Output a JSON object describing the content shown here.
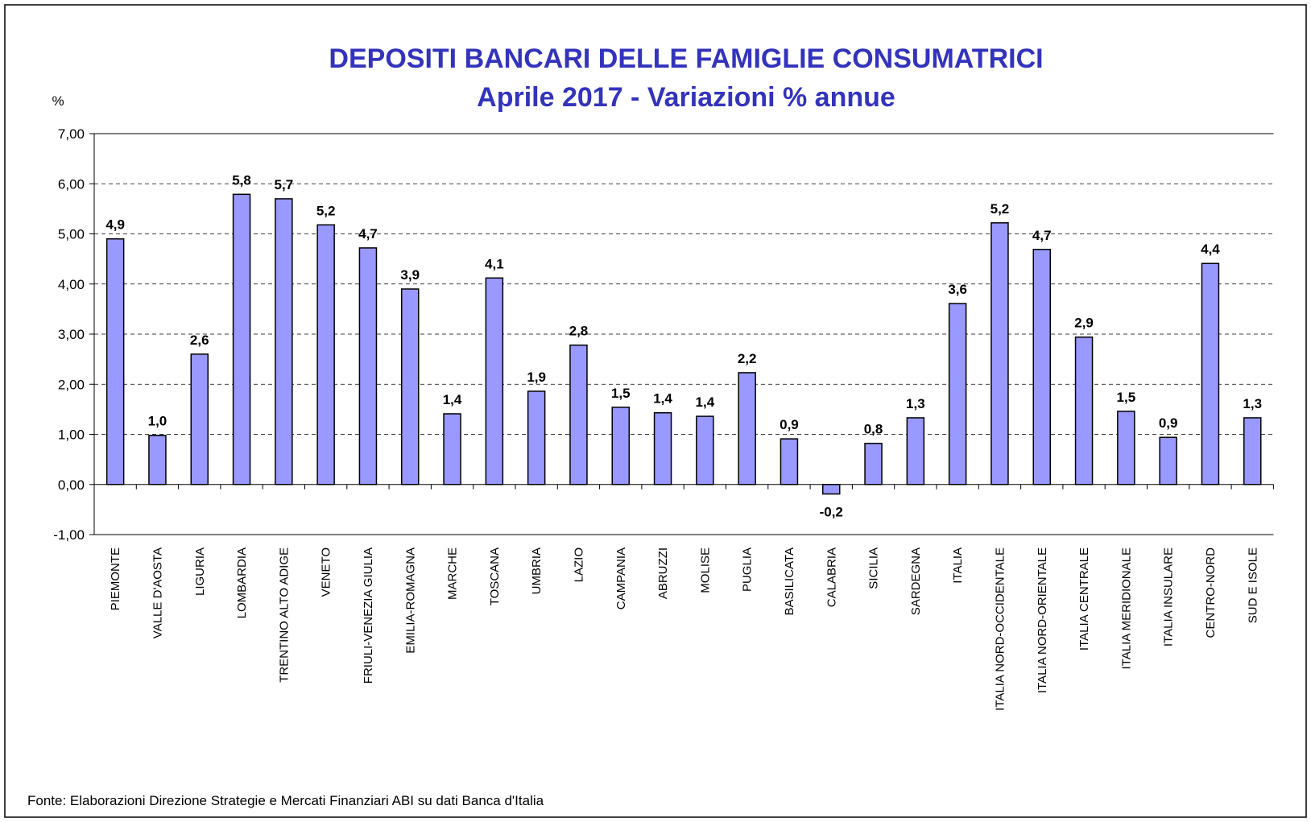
{
  "chart_data": {
    "type": "bar",
    "title": "DEPOSITI BANCARI DELLE FAMIGLIE CONSUMATRICI",
    "subtitle": "Aprile 2017 - Variazioni % annue",
    "y_label": "%",
    "source": "Fonte: Elaborazioni Direzione Strategie e Mercati Finanziari ABI su dati Banca d'Italia",
    "categories": [
      "PIEMONTE",
      "VALLE D'AOSTA",
      "LIGURIA",
      "LOMBARDIA",
      "TRENTINO ALTO ADIGE",
      "VENETO",
      "FRIULI-VENEZIA GIULIA",
      "EMILIA-ROMAGNA",
      "MARCHE",
      "TOSCANA",
      "UMBRIA",
      "LAZIO",
      "CAMPANIA",
      "ABRUZZI",
      "MOLISE",
      "PUGLIA",
      "BASILICATA",
      "CALABRIA",
      "SICILIA",
      "SARDEGNA",
      "ITALIA",
      "ITALIA NORD-OCCIDENTALE",
      "ITALIA NORD-ORIENTALE",
      "ITALIA CENTRALE",
      "ITALIA MERIDIONALE",
      "ITALIA INSULARE",
      "CENTRO-NORD",
      "SUD E ISOLE"
    ],
    "values": [
      4.9,
      0.98,
      2.6,
      5.79,
      5.7,
      5.18,
      4.72,
      3.9,
      1.41,
      4.12,
      1.86,
      2.78,
      1.54,
      1.43,
      1.36,
      2.23,
      0.91,
      -0.19,
      0.82,
      1.33,
      3.61,
      5.22,
      4.69,
      2.94,
      1.46,
      0.94,
      4.41,
      1.33
    ],
    "value_labels": [
      "4,9",
      "1,0",
      "2,6",
      "5,8",
      "5,7",
      "5,2",
      "4,7",
      "3,9",
      "1,4",
      "4,1",
      "1,9",
      "2,8",
      "1,5",
      "1,4",
      "1,4",
      "2,2",
      "0,9",
      "-0,2",
      "0,8",
      "1,3",
      "3,6",
      "5,2",
      "4,7",
      "2,9",
      "1,5",
      "0,9",
      "4,4",
      "1,3"
    ],
    "color": "#9999ff",
    "ylim": [
      -1,
      7
    ],
    "yticks": [
      {
        "value": -1,
        "label": "-1,00"
      },
      {
        "value": 0,
        "label": "0,00"
      },
      {
        "value": 1,
        "label": "1,00"
      },
      {
        "value": 2,
        "label": "2,00"
      },
      {
        "value": 3,
        "label": "3,00"
      },
      {
        "value": 4,
        "label": "4,00"
      },
      {
        "value": 5,
        "label": "5,00"
      },
      {
        "value": 6,
        "label": "6,00"
      },
      {
        "value": 7,
        "label": "7,00"
      }
    ],
    "grid": true
  }
}
